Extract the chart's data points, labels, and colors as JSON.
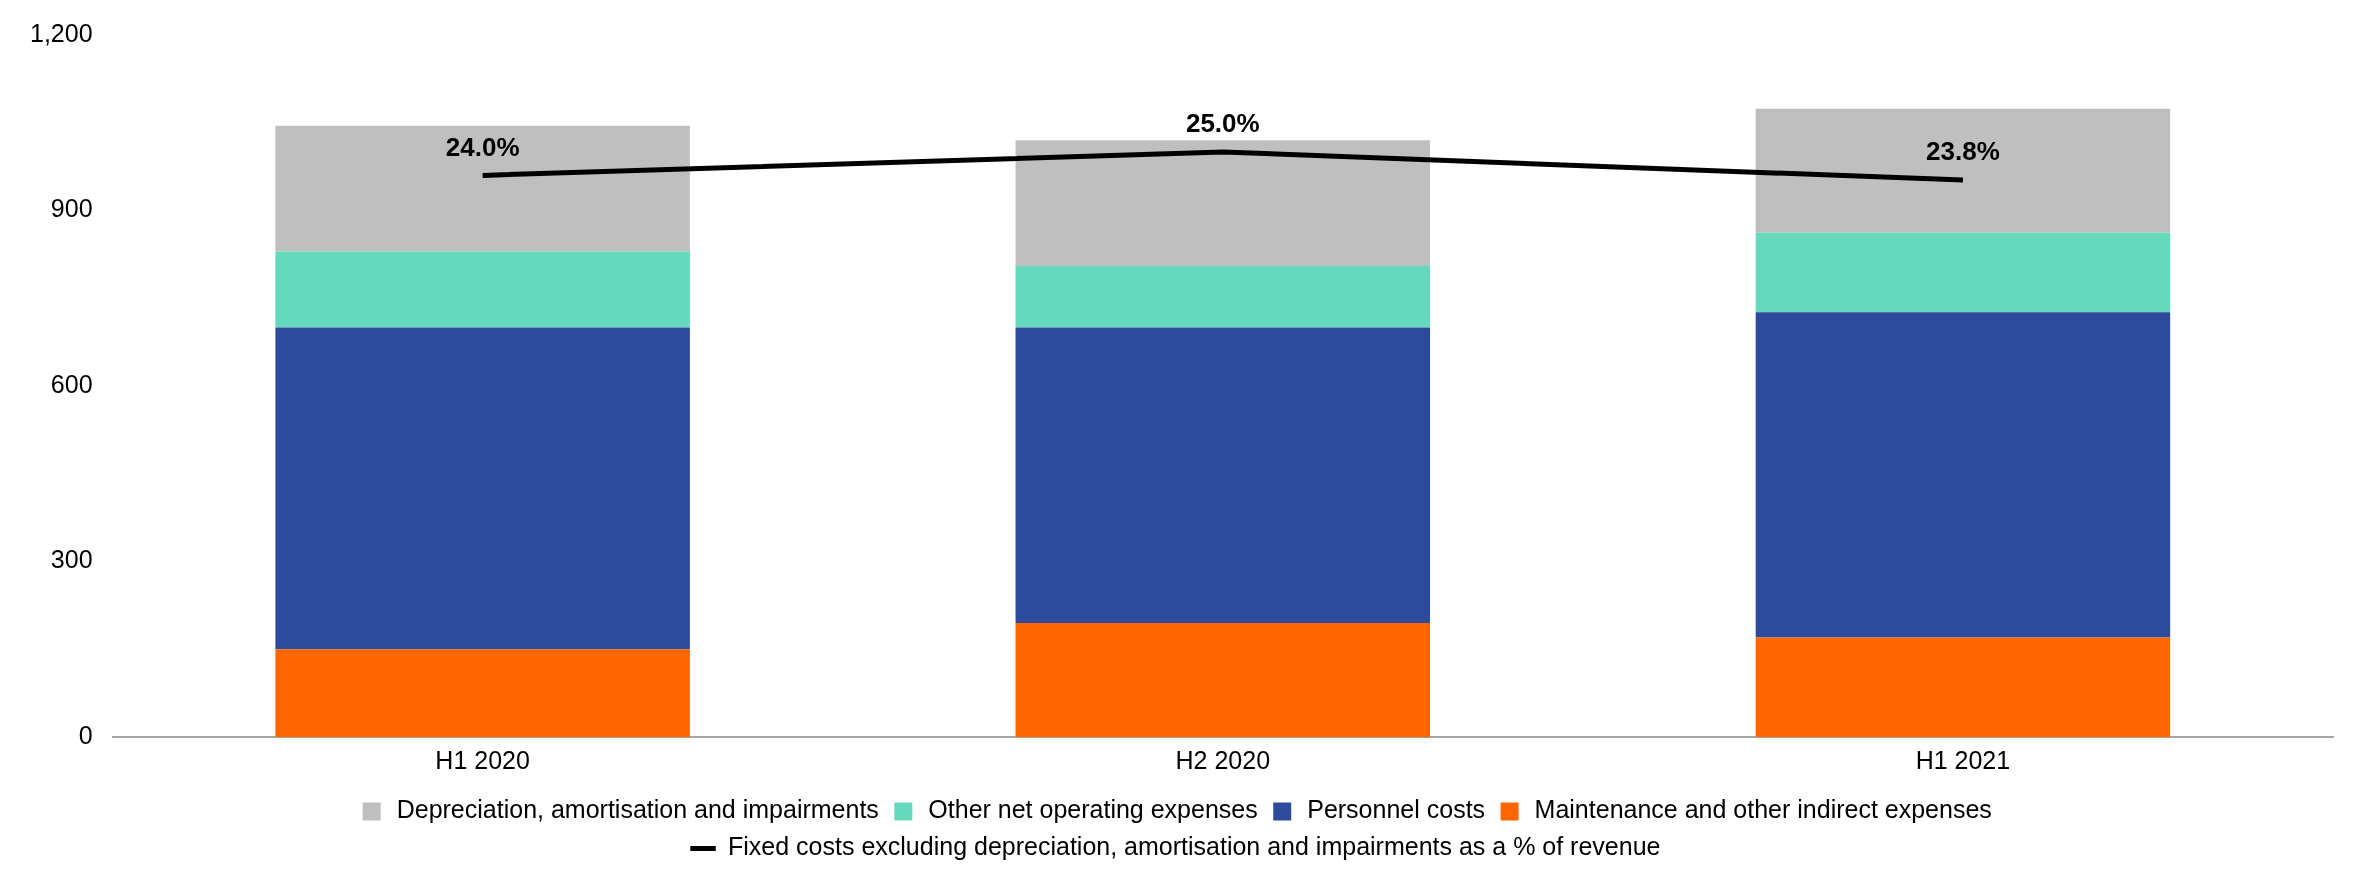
{
  "chart_data": {
    "type": "bar",
    "stacked": true,
    "categories": [
      "H1 2020",
      "H2 2020",
      "H1 2021"
    ],
    "ylim": [
      0,
      1200
    ],
    "yticks": [
      0,
      {
        "value": 300,
        "label": "300"
      },
      {
        "value": 600,
        "label": "600"
      },
      {
        "value": 900,
        "label": "900"
      },
      {
        "value": 1200,
        "label": "1,200"
      }
    ],
    "tick_labels": "xy",
    "grid": false,
    "legend": "bottom",
    "marker": "none",
    "series": [
      {
        "name": "Maintenance and other indirect expenses",
        "color": "#ff6600",
        "values": [
          150,
          195,
          170
        ]
      },
      {
        "name": "Personnel costs",
        "color": "#2e4a9a",
        "values": [
          550,
          505,
          556
        ]
      },
      {
        "name": "Other net operating expenses",
        "color": "#66d9bc",
        "values": [
          130,
          105,
          136
        ]
      },
      {
        "name": "Depreciation, amortisation and impairments",
        "color": "#bfbfbf",
        "values": [
          215,
          215,
          212
        ]
      },
      {
        "name": "Fixed costs excluding depreciation, amortisation and impairments as a % of revenue",
        "type": "line",
        "axis": "y2",
        "color": "#000000",
        "values": [
          24.0,
          25.0,
          23.8
        ],
        "value_labels": [
          "24.0%",
          "25.0%",
          "23.8%"
        ]
      }
    ]
  }
}
